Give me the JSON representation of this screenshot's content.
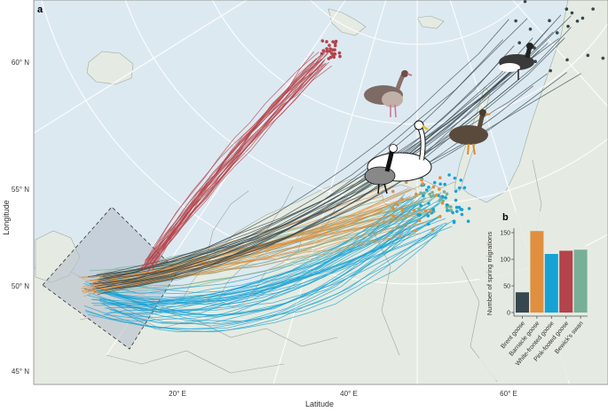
{
  "figure": {
    "panel_a_label": "a",
    "panel_b_label": "b",
    "x_axis_label": "Latitude",
    "y_axis_label": "Longitude",
    "x_ticks": [
      "20° E",
      "40° E",
      "60° E"
    ],
    "y_ticks": [
      "60° N",
      "55° N",
      "50° N",
      "45° N"
    ],
    "colors": {
      "sea": "#dde9f1",
      "land": "#e5ebe2",
      "brent_goose": "#36474e",
      "barnacle_goose": "#e08f3f",
      "white_fronted_goose": "#17a2d4",
      "pink_footed_goose": "#b4434a",
      "bewicks_swan": "#77b096"
    },
    "birds": [
      "pink-footed-goose-illustration",
      "brent-goose-illustration",
      "white-fronted-goose-illustration",
      "bewicks-swan-illustration",
      "barnacle-goose-illustration"
    ]
  },
  "chart_data": {
    "type": "bar",
    "title": "",
    "xlabel": "",
    "ylabel": "Number of spring migrations",
    "categories": [
      "Brent goose",
      "Barnacle goose",
      "White-fronted goose",
      "Pink-footed goose",
      "Bewick's swan"
    ],
    "values": [
      38,
      153,
      110,
      116,
      118
    ],
    "colors": [
      "#36474e",
      "#e08f3f",
      "#17a2d4",
      "#b4434a",
      "#77b096"
    ],
    "ylim": [
      0,
      160
    ],
    "yticks": [
      0,
      50,
      100,
      150
    ],
    "grid": false
  }
}
